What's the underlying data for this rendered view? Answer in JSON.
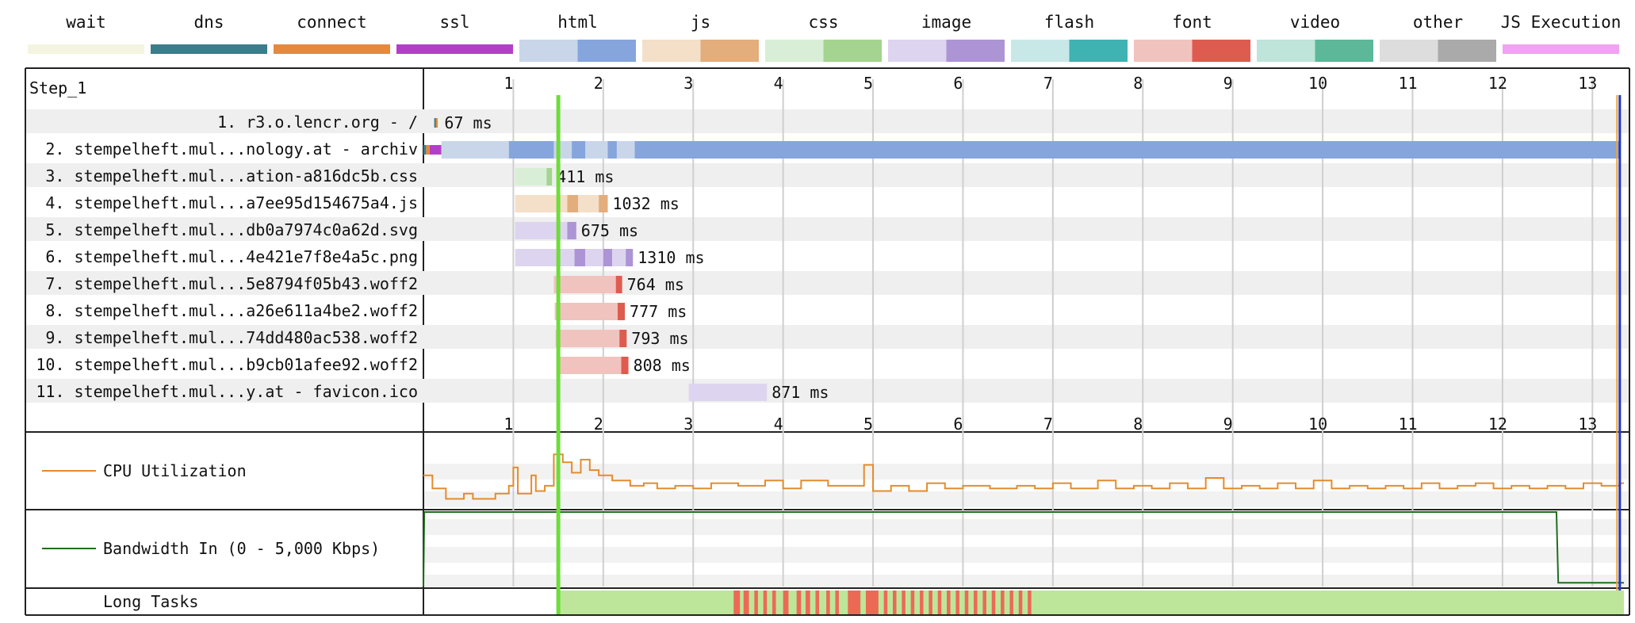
{
  "legend": [
    {
      "label": "wait",
      "colors": [
        "#f4f4e1",
        "#f4f4e1"
      ]
    },
    {
      "label": "dns",
      "colors": [
        "#3b7d8a",
        "#3b7d8a"
      ]
    },
    {
      "label": "connect",
      "colors": [
        "#e6893d",
        "#e6893d"
      ]
    },
    {
      "label": "ssl",
      "colors": [
        "#b33fc9",
        "#b33fc9"
      ]
    },
    {
      "label": "html",
      "colors": [
        "#c9d6ea",
        "#86a5dc"
      ]
    },
    {
      "label": "js",
      "colors": [
        "#f4dfc8",
        "#e3ad7c"
      ]
    },
    {
      "label": "css",
      "colors": [
        "#d9eed6",
        "#a4d48f"
      ]
    },
    {
      "label": "image",
      "colors": [
        "#ddd5ef",
        "#ad94d5"
      ]
    },
    {
      "label": "flash",
      "colors": [
        "#c8e8e8",
        "#3fb2b2"
      ]
    },
    {
      "label": "font",
      "colors": [
        "#f1c3be",
        "#de5c4f"
      ]
    },
    {
      "label": "video",
      "colors": [
        "#bfe4d9",
        "#5cb898"
      ]
    },
    {
      "label": "other",
      "colors": [
        "#dddddd",
        "#aaaaaa"
      ]
    },
    {
      "label": "JS Execution",
      "colors": [
        "#f0a3f0",
        "#f0a3f0"
      ]
    }
  ],
  "step_label": "Step_1",
  "cpu_label": "CPU Utilization",
  "bandwidth_label": "Bandwidth In (0 - 5,000 Kbps)",
  "long_tasks_label": "Long Tasks",
  "chart_data": {
    "type": "waterfall",
    "x_unit": "seconds",
    "xlim": [
      0,
      13.35
    ],
    "x_ticks": [
      1,
      2,
      3,
      4,
      5,
      6,
      7,
      8,
      9,
      10,
      11,
      12,
      13
    ],
    "start_render": 1.5,
    "document_complete": 13.3,
    "requests": [
      {
        "label": "1. r3.o.lencr.org - /",
        "type": "other",
        "start": 0.12,
        "duration_label": "67 ms",
        "phases": [
          {
            "kind": "dns",
            "s": 0.12,
            "e": 0.14
          },
          {
            "kind": "connect",
            "s": 0.14,
            "e": 0.16
          },
          {
            "kind": "wait",
            "s": 0.16,
            "e": 0.18
          }
        ]
      },
      {
        "label": "2. stempelheft.mul...nology.at - archiv",
        "type": "html",
        "start": 0.0,
        "duration_label": "",
        "phases": [
          {
            "kind": "dns",
            "s": 0.0,
            "e": 0.03
          },
          {
            "kind": "connect",
            "s": 0.03,
            "e": 0.07
          },
          {
            "kind": "ssl",
            "s": 0.07,
            "e": 0.2
          },
          {
            "kind": "light",
            "s": 0.2,
            "e": 0.95
          },
          {
            "kind": "dark",
            "s": 0.95,
            "e": 13.3
          }
        ],
        "gaps": [
          [
            1.45,
            1.65
          ],
          [
            1.8,
            2.05
          ],
          [
            2.15,
            2.35
          ]
        ]
      },
      {
        "label": "3. stempelheft.mul...ation-a816dc5b.css",
        "type": "css",
        "start": 1.02,
        "duration_label": "411 ms",
        "phases": [
          {
            "kind": "light",
            "s": 1.02,
            "e": 1.37
          },
          {
            "kind": "dark",
            "s": 1.37,
            "e": 1.43
          }
        ]
      },
      {
        "label": "4. stempelheft.mul...a7ee95d154675a4.js",
        "type": "js",
        "start": 1.02,
        "duration_label": "1032 ms",
        "phases": [
          {
            "kind": "light",
            "s": 1.02,
            "e": 1.6
          },
          {
            "kind": "dark",
            "s": 1.6,
            "e": 1.72
          },
          {
            "kind": "light",
            "s": 1.72,
            "e": 1.95
          },
          {
            "kind": "dark",
            "s": 1.95,
            "e": 2.05
          }
        ]
      },
      {
        "label": "5. stempelheft.mul...db0a7974c0a62d.svg",
        "type": "image",
        "start": 1.02,
        "duration_label": "675 ms",
        "phases": [
          {
            "kind": "light",
            "s": 1.02,
            "e": 1.6
          },
          {
            "kind": "dark",
            "s": 1.6,
            "e": 1.7
          }
        ]
      },
      {
        "label": "6. stempelheft.mul...4e421e7f8e4a5c.png",
        "type": "image",
        "start": 1.02,
        "duration_label": "1310 ms",
        "phases": [
          {
            "kind": "light",
            "s": 1.02,
            "e": 1.68
          },
          {
            "kind": "dark",
            "s": 1.68,
            "e": 1.8
          },
          {
            "kind": "light",
            "s": 1.8,
            "e": 2.0
          },
          {
            "kind": "dark",
            "s": 2.0,
            "e": 2.1
          },
          {
            "kind": "light",
            "s": 2.1,
            "e": 2.25
          },
          {
            "kind": "dark",
            "s": 2.25,
            "e": 2.33
          }
        ]
      },
      {
        "label": "7. stempelheft.mul...5e8794f05b43.woff2",
        "type": "font",
        "start": 1.45,
        "duration_label": "764 ms",
        "phases": [
          {
            "kind": "light",
            "s": 1.45,
            "e": 2.14
          },
          {
            "kind": "dark",
            "s": 2.14,
            "e": 2.21
          }
        ]
      },
      {
        "label": "8. stempelheft.mul...a26e611a4be2.woff2",
        "type": "font",
        "start": 1.46,
        "duration_label": "777 ms",
        "phases": [
          {
            "kind": "light",
            "s": 1.46,
            "e": 2.16
          },
          {
            "kind": "dark",
            "s": 2.16,
            "e": 2.24
          }
        ]
      },
      {
        "label": "9. stempelheft.mul...74dd480ac538.woff2",
        "type": "font",
        "start": 1.47,
        "duration_label": "793 ms",
        "phases": [
          {
            "kind": "light",
            "s": 1.47,
            "e": 2.18
          },
          {
            "kind": "dark",
            "s": 2.18,
            "e": 2.26
          }
        ]
      },
      {
        "label": "10. stempelheft.mul...b9cb01afee92.woff2",
        "type": "font",
        "start": 1.48,
        "duration_label": "808 ms",
        "phases": [
          {
            "kind": "light",
            "s": 1.48,
            "e": 2.2
          },
          {
            "kind": "dark",
            "s": 2.2,
            "e": 2.28
          }
        ]
      },
      {
        "label": "11. stempelheft.mul...y.at - favicon.ico",
        "type": "image",
        "start": 2.95,
        "duration_label": "871 ms",
        "phases": [
          {
            "kind": "light",
            "s": 2.95,
            "e": 3.82
          }
        ]
      }
    ],
    "cpu_series": [
      [
        0.0,
        0.55
      ],
      [
        0.1,
        0.3
      ],
      [
        0.25,
        0.1
      ],
      [
        0.45,
        0.2
      ],
      [
        0.55,
        0.1
      ],
      [
        0.8,
        0.2
      ],
      [
        0.95,
        0.35
      ],
      [
        1.0,
        0.7
      ],
      [
        1.05,
        0.2
      ],
      [
        1.2,
        0.55
      ],
      [
        1.25,
        0.25
      ],
      [
        1.35,
        0.35
      ],
      [
        1.45,
        0.95
      ],
      [
        1.55,
        0.8
      ],
      [
        1.65,
        0.6
      ],
      [
        1.75,
        0.85
      ],
      [
        1.85,
        0.65
      ],
      [
        1.95,
        0.55
      ],
      [
        2.1,
        0.45
      ],
      [
        2.3,
        0.35
      ],
      [
        2.45,
        0.4
      ],
      [
        2.6,
        0.3
      ],
      [
        2.8,
        0.35
      ],
      [
        3.0,
        0.3
      ],
      [
        3.2,
        0.4
      ],
      [
        3.5,
        0.35
      ],
      [
        3.8,
        0.45
      ],
      [
        4.0,
        0.3
      ],
      [
        4.2,
        0.45
      ],
      [
        4.5,
        0.35
      ],
      [
        4.9,
        0.75
      ],
      [
        5.0,
        0.25
      ],
      [
        5.2,
        0.35
      ],
      [
        5.4,
        0.25
      ],
      [
        5.6,
        0.4
      ],
      [
        5.8,
        0.3
      ],
      [
        6.0,
        0.35
      ],
      [
        6.3,
        0.3
      ],
      [
        6.6,
        0.35
      ],
      [
        6.8,
        0.3
      ],
      [
        7.0,
        0.4
      ],
      [
        7.2,
        0.3
      ],
      [
        7.5,
        0.45
      ],
      [
        7.7,
        0.3
      ],
      [
        7.9,
        0.35
      ],
      [
        8.1,
        0.3
      ],
      [
        8.3,
        0.4
      ],
      [
        8.5,
        0.3
      ],
      [
        8.7,
        0.5
      ],
      [
        8.9,
        0.3
      ],
      [
        9.1,
        0.35
      ],
      [
        9.3,
        0.3
      ],
      [
        9.5,
        0.4
      ],
      [
        9.7,
        0.3
      ],
      [
        9.9,
        0.45
      ],
      [
        10.1,
        0.3
      ],
      [
        10.3,
        0.35
      ],
      [
        10.5,
        0.3
      ],
      [
        10.7,
        0.35
      ],
      [
        10.9,
        0.3
      ],
      [
        11.1,
        0.4
      ],
      [
        11.3,
        0.3
      ],
      [
        11.5,
        0.35
      ],
      [
        11.7,
        0.4
      ],
      [
        11.9,
        0.3
      ],
      [
        12.1,
        0.35
      ],
      [
        12.3,
        0.3
      ],
      [
        12.5,
        0.35
      ],
      [
        12.7,
        0.3
      ],
      [
        12.9,
        0.4
      ],
      [
        13.1,
        0.35
      ],
      [
        13.3,
        0.4
      ]
    ],
    "bandwidth_series": [
      [
        0.0,
        0.0
      ],
      [
        0.01,
        1.0
      ],
      [
        12.6,
        1.0
      ],
      [
        12.62,
        0.05
      ],
      [
        13.35,
        0.05
      ]
    ],
    "long_tasks": {
      "overall": [
        1.5,
        13.35
      ],
      "blocking": [
        [
          3.45,
          3.52
        ],
        [
          3.56,
          3.62
        ],
        [
          3.68,
          3.72
        ],
        [
          3.78,
          3.82
        ],
        [
          3.88,
          3.92
        ],
        [
          4.0,
          4.06
        ],
        [
          4.15,
          4.2
        ],
        [
          4.25,
          4.3
        ],
        [
          4.36,
          4.4
        ],
        [
          4.48,
          4.52
        ],
        [
          4.58,
          4.62
        ],
        [
          4.72,
          4.86
        ],
        [
          4.92,
          5.06
        ],
        [
          5.12,
          5.16
        ],
        [
          5.22,
          5.26
        ],
        [
          5.32,
          5.36
        ],
        [
          5.42,
          5.46
        ],
        [
          5.52,
          5.56
        ],
        [
          5.62,
          5.66
        ],
        [
          5.72,
          5.76
        ],
        [
          5.82,
          5.86
        ],
        [
          5.92,
          5.96
        ],
        [
          6.02,
          6.06
        ],
        [
          6.12,
          6.16
        ],
        [
          6.22,
          6.26
        ],
        [
          6.32,
          6.36
        ],
        [
          6.42,
          6.46
        ],
        [
          6.52,
          6.56
        ],
        [
          6.62,
          6.66
        ],
        [
          6.72,
          6.76
        ]
      ]
    }
  }
}
